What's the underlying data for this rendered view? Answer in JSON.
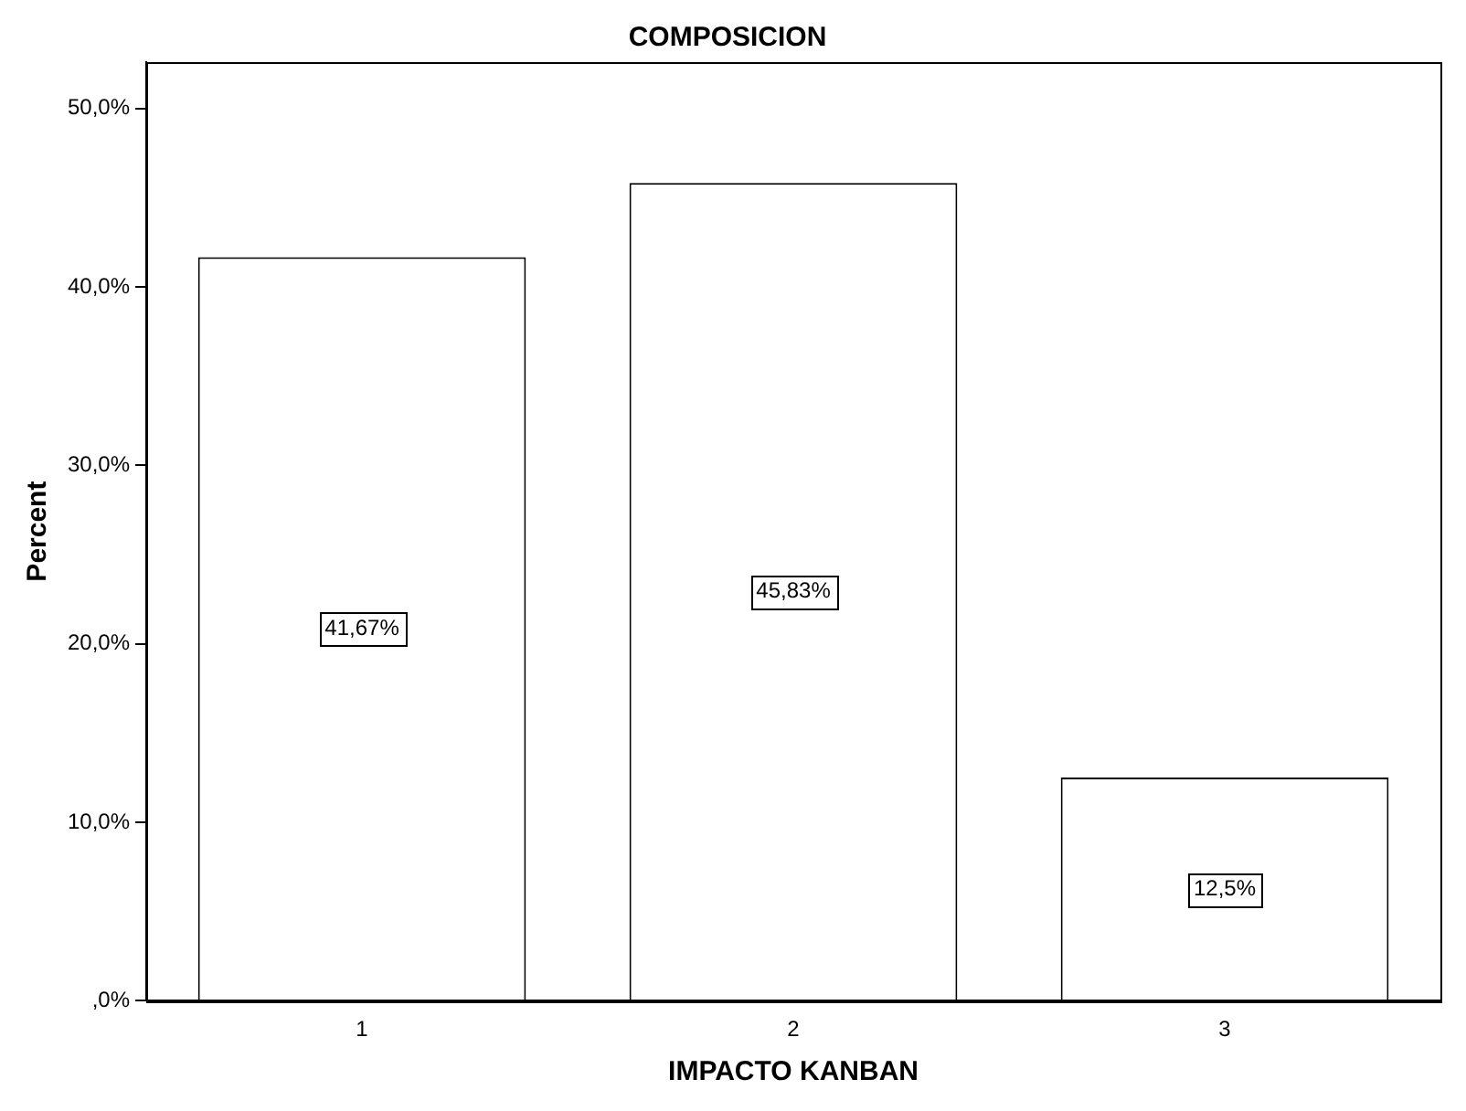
{
  "chart_data": {
    "type": "bar",
    "title": "COMPOSICION",
    "xlabel": "IMPACTO KANBAN",
    "ylabel": "Percent",
    "categories": [
      "1",
      "2",
      "3"
    ],
    "values": [
      41.67,
      45.83,
      12.5
    ],
    "value_labels": [
      "41,67%",
      "45,83%",
      "12,5%"
    ],
    "color": "#ffffff",
    "ylim": [
      0,
      52.6
    ],
    "yticks": [
      {
        "value": 0,
        "label": ",0%"
      },
      {
        "value": 10,
        "label": "10,0%"
      },
      {
        "value": 20,
        "label": "20,0%"
      },
      {
        "value": 30,
        "label": "30,0%"
      },
      {
        "value": 40,
        "label": "40,0%"
      },
      {
        "value": 50,
        "label": "50,0%"
      }
    ],
    "grid": false,
    "legend": false
  }
}
